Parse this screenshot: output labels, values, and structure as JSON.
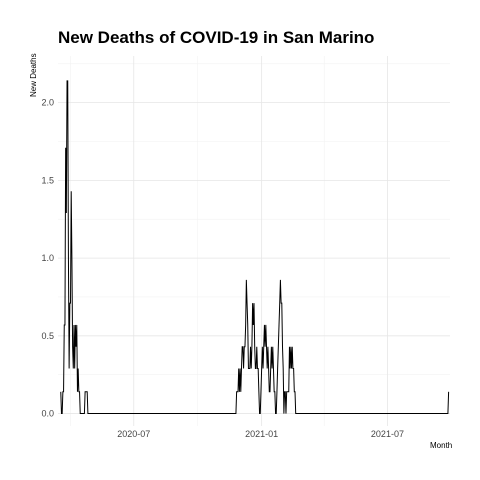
{
  "chart_data": {
    "type": "line",
    "title": "New Deaths of COVID-19 in San Marino",
    "xlabel": "Month",
    "ylabel": "New Deaths",
    "x_ticks": [
      "2020-07",
      "2021-01",
      "2021-07"
    ],
    "y_ticks": [
      "0.0",
      "0.5",
      "1.0",
      "1.5",
      "2.0"
    ],
    "xlim": [
      "2020-03-14",
      "2021-09-29"
    ],
    "ylim": [
      -0.08,
      2.3
    ],
    "grid": true,
    "series": [
      {
        "color": "#000000",
        "points": [
          [
            "2020-03-18",
            0.14
          ],
          [
            "2020-03-19",
            0.0
          ],
          [
            "2020-03-20",
            0.0
          ],
          [
            "2020-03-21",
            0.14
          ],
          [
            "2020-03-22",
            0.14
          ],
          [
            "2020-03-23",
            0.57
          ],
          [
            "2020-03-24",
            0.57
          ],
          [
            "2020-03-25",
            1.71
          ],
          [
            "2020-03-26",
            1.29
          ],
          [
            "2020-03-27",
            2.14
          ],
          [
            "2020-03-28",
            2.14
          ],
          [
            "2020-03-29",
            1.0
          ],
          [
            "2020-03-30",
            0.29
          ],
          [
            "2020-03-31",
            0.71
          ],
          [
            "2020-04-01",
            0.71
          ],
          [
            "2020-04-02",
            1.43
          ],
          [
            "2020-04-03",
            1.0
          ],
          [
            "2020-04-04",
            0.43
          ],
          [
            "2020-04-05",
            0.29
          ],
          [
            "2020-04-06",
            0.57
          ],
          [
            "2020-04-07",
            0.29
          ],
          [
            "2020-04-08",
            0.57
          ],
          [
            "2020-04-09",
            0.43
          ],
          [
            "2020-04-10",
            0.57
          ],
          [
            "2020-04-11",
            0.14
          ],
          [
            "2020-04-12",
            0.29
          ],
          [
            "2020-04-13",
            0.14
          ],
          [
            "2020-04-14",
            0.14
          ],
          [
            "2020-04-15",
            0.0
          ],
          [
            "2020-04-20",
            0.0
          ],
          [
            "2020-04-21",
            0.0
          ],
          [
            "2020-04-22",
            0.14
          ],
          [
            "2020-04-25",
            0.14
          ],
          [
            "2020-04-26",
            0.0
          ],
          [
            "2020-11-25",
            0.0
          ],
          [
            "2020-11-26",
            0.14
          ],
          [
            "2020-11-28",
            0.14
          ],
          [
            "2020-11-29",
            0.29
          ],
          [
            "2020-11-30",
            0.14
          ],
          [
            "2020-12-01",
            0.29
          ],
          [
            "2020-12-02",
            0.14
          ],
          [
            "2020-12-03",
            0.29
          ],
          [
            "2020-12-04",
            0.43
          ],
          [
            "2020-12-05",
            0.43
          ],
          [
            "2020-12-06",
            0.29
          ],
          [
            "2020-12-07",
            0.43
          ],
          [
            "2020-12-08",
            0.43
          ],
          [
            "2020-12-09",
            0.57
          ],
          [
            "2020-12-10",
            0.86
          ],
          [
            "2020-12-11",
            0.71
          ],
          [
            "2020-12-12",
            0.57
          ],
          [
            "2020-12-13",
            0.29
          ],
          [
            "2020-12-14",
            0.29
          ],
          [
            "2020-12-15",
            0.29
          ],
          [
            "2020-12-16",
            0.43
          ],
          [
            "2020-12-17",
            0.29
          ],
          [
            "2020-12-18",
            0.43
          ],
          [
            "2020-12-19",
            0.71
          ],
          [
            "2020-12-20",
            0.57
          ],
          [
            "2020-12-21",
            0.71
          ],
          [
            "2020-12-22",
            0.43
          ],
          [
            "2020-12-23",
            0.29
          ],
          [
            "2020-12-24",
            0.29
          ],
          [
            "2020-12-25",
            0.43
          ],
          [
            "2020-12-26",
            0.29
          ],
          [
            "2020-12-27",
            0.29
          ],
          [
            "2020-12-28",
            0.14
          ],
          [
            "2020-12-29",
            0.0
          ],
          [
            "2020-12-30",
            0.0
          ],
          [
            "2020-12-31",
            0.14
          ],
          [
            "2021-01-01",
            0.29
          ],
          [
            "2021-01-02",
            0.43
          ],
          [
            "2021-01-03",
            0.29
          ],
          [
            "2021-01-04",
            0.43
          ],
          [
            "2021-01-05",
            0.57
          ],
          [
            "2021-01-06",
            0.43
          ],
          [
            "2021-01-07",
            0.57
          ],
          [
            "2021-01-08",
            0.43
          ],
          [
            "2021-01-09",
            0.29
          ],
          [
            "2021-01-10",
            0.43
          ],
          [
            "2021-01-11",
            0.29
          ],
          [
            "2021-01-12",
            0.14
          ],
          [
            "2021-01-13",
            0.14
          ],
          [
            "2021-01-14",
            0.29
          ],
          [
            "2021-01-15",
            0.43
          ],
          [
            "2021-01-16",
            0.29
          ],
          [
            "2021-01-17",
            0.43
          ],
          [
            "2021-01-18",
            0.29
          ],
          [
            "2021-01-19",
            0.14
          ],
          [
            "2021-01-20",
            0.14
          ],
          [
            "2021-01-21",
            0.0
          ],
          [
            "2021-01-22",
            0.0
          ],
          [
            "2021-01-23",
            0.14
          ],
          [
            "2021-01-24",
            0.29
          ],
          [
            "2021-01-25",
            0.43
          ],
          [
            "2021-01-26",
            0.57
          ],
          [
            "2021-01-27",
            0.71
          ],
          [
            "2021-01-28",
            0.86
          ],
          [
            "2021-01-29",
            0.71
          ],
          [
            "2021-01-30",
            0.71
          ],
          [
            "2021-01-31",
            0.43
          ],
          [
            "2021-02-01",
            0.29
          ],
          [
            "2021-02-02",
            0.0
          ],
          [
            "2021-02-03",
            0.14
          ],
          [
            "2021-02-04",
            0.14
          ],
          [
            "2021-02-05",
            0.0
          ],
          [
            "2021-02-06",
            0.14
          ],
          [
            "2021-02-07",
            0.14
          ],
          [
            "2021-02-08",
            0.14
          ],
          [
            "2021-02-09",
            0.14
          ],
          [
            "2021-02-10",
            0.43
          ],
          [
            "2021-02-11",
            0.29
          ],
          [
            "2021-02-12",
            0.43
          ],
          [
            "2021-02-13",
            0.29
          ],
          [
            "2021-02-14",
            0.43
          ],
          [
            "2021-02-15",
            0.29
          ],
          [
            "2021-02-16",
            0.29
          ],
          [
            "2021-02-17",
            0.14
          ],
          [
            "2021-02-18",
            0.14
          ],
          [
            "2021-02-19",
            0.0
          ],
          [
            "2021-09-26",
            0.0
          ],
          [
            "2021-09-27",
            0.14
          ]
        ]
      }
    ]
  }
}
